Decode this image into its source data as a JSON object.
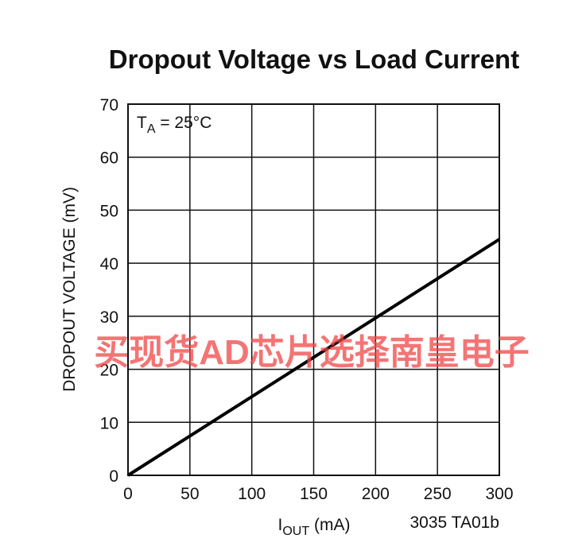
{
  "chart_data": {
    "type": "line",
    "title": "Dropout Voltage vs Load Current",
    "y_label": "DROPOUT VOLTAGE (mV)",
    "x_label_parts": [
      "I",
      "OUT",
      " (mA)"
    ],
    "annotation_parts": [
      "T",
      "A",
      " = 25°C"
    ],
    "note": "3035 TA01b",
    "watermark": "买现货AD芯片选择南皇电子",
    "x": [
      0,
      300
    ],
    "series": [
      {
        "name": "Dropout Voltage",
        "color": "#000000",
        "values": [
          0,
          44.5
        ]
      }
    ],
    "xlim": [
      0,
      300
    ],
    "xticks": [
      0,
      50,
      100,
      150,
      200,
      250,
      300
    ],
    "ylim": [
      0,
      70
    ],
    "yticks": [
      0,
      10,
      20,
      30,
      40,
      50,
      60,
      70
    ],
    "grid": true
  }
}
